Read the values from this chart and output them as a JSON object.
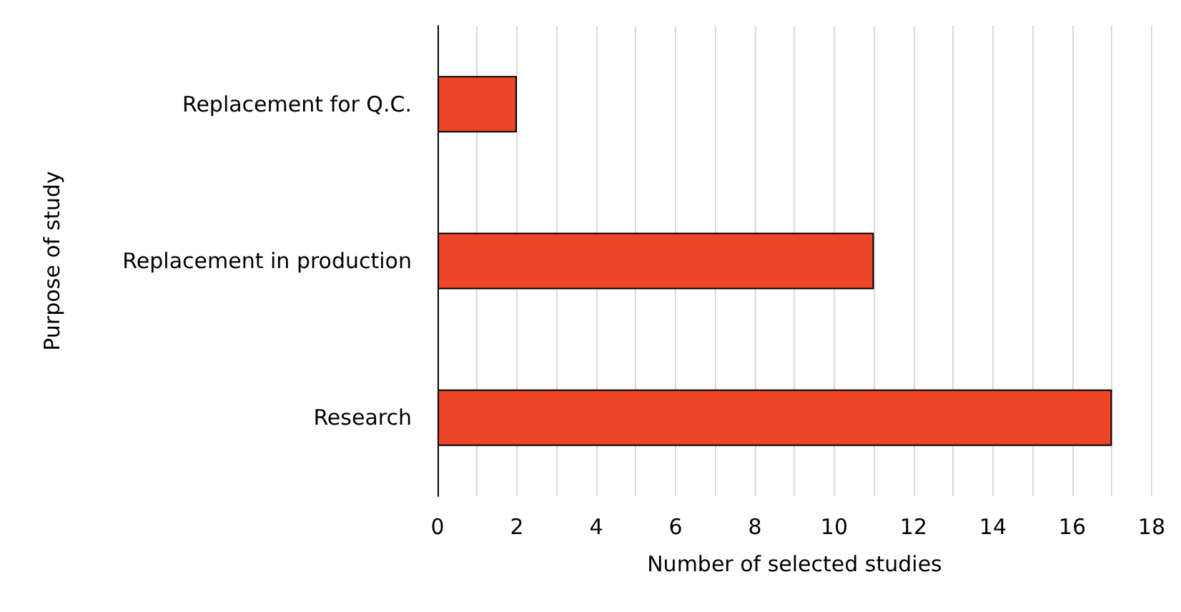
{
  "chart_data": {
    "type": "bar",
    "orientation": "horizontal",
    "xlabel": "Number of selected studies",
    "ylabel": "Purpose of study",
    "categories": [
      "Replacement for Q.C.",
      "Replacement in production",
      "Research"
    ],
    "values": [
      2,
      11,
      17
    ],
    "color": "#ee4527",
    "xlim": [
      0,
      18
    ],
    "xticks": [
      0,
      {
        "value": 1,
        "label": null
      },
      2,
      {
        "value": 3,
        "label": null
      },
      4,
      {
        "value": 5,
        "label": null
      },
      6,
      {
        "value": 7,
        "label": null
      },
      8,
      {
        "value": 9,
        "label": null
      },
      10,
      {
        "value": 11,
        "label": null
      },
      12,
      {
        "value": 13,
        "label": null
      },
      14,
      {
        "value": 15,
        "label": null
      },
      16,
      {
        "value": 17,
        "label": null
      },
      18
    ],
    "grid": "x"
  }
}
